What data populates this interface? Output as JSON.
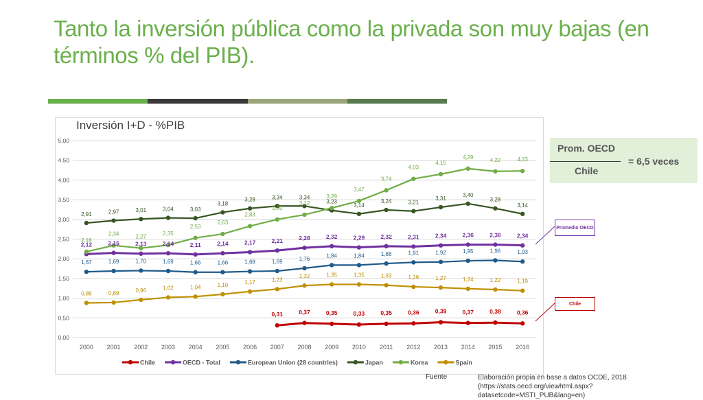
{
  "slide": {
    "title": "Tanto la inversión pública como la privada son muy bajas (en términos % del PIB).",
    "accent_colors": [
      "#6ab04c",
      "#3a3a3a",
      "#9aa57c",
      "#587a4d"
    ],
    "ratio": {
      "numerator": "Prom. OECD",
      "denominator": "Chile",
      "equals": "= 6,5 veces"
    },
    "callouts": {
      "oecd": "Promedio OECD",
      "chile": "Chile"
    },
    "source": {
      "label": "Fuente",
      "text": "Elaboración propia en base a datos OCDE, 2018 (https://stats.oecd.org/viewhtml.aspx?datasetcode=MSTI_PUB&lang=en)"
    }
  },
  "chart_data": {
    "type": "line",
    "title": "Inversión I+D - %PIB",
    "xlabel": "",
    "ylabel": "",
    "ylim": [
      0,
      5
    ],
    "yticks": [
      "0,00",
      "0,50",
      "1,00",
      "1,50",
      "2,00",
      "2,50",
      "3,00",
      "3,50",
      "4,00",
      "4,50",
      "5,00"
    ],
    "grid": true,
    "legend_position": "bottom",
    "categories": [
      "2000",
      "2001",
      "2002",
      "2003",
      "2004",
      "2005",
      "2006",
      "2007",
      "2008",
      "2009",
      "2010",
      "2011",
      "2012",
      "2013",
      "2014",
      "2015",
      "2016"
    ],
    "series": [
      {
        "name": "Chile",
        "color": "#c00000",
        "values": [
          null,
          null,
          null,
          null,
          null,
          null,
          null,
          0.31,
          0.37,
          0.35,
          0.33,
          0.35,
          0.36,
          0.39,
          0.37,
          0.38,
          0.36
        ],
        "labels": [
          null,
          null,
          null,
          null,
          null,
          null,
          null,
          "0,31",
          "0,37",
          "0,35",
          "0,33",
          "0,35",
          "0,36",
          "0,39",
          "0,37",
          "0,38",
          "0,36"
        ]
      },
      {
        "name": "OECD - Total",
        "color": "#7030a0",
        "values": [
          2.12,
          2.15,
          2.13,
          2.14,
          2.11,
          2.14,
          2.17,
          2.21,
          2.28,
          2.32,
          2.29,
          2.32,
          2.31,
          2.34,
          2.36,
          2.36,
          2.34
        ],
        "labels": [
          "2,12",
          "2,15",
          "2,13",
          "2,14",
          "2,11",
          "2,14",
          "2,17",
          "2,21",
          "2,28",
          "2,32",
          "2,29",
          "2,32",
          "2,31",
          "2,34",
          "2,36",
          "2,36",
          "2,34"
        ]
      },
      {
        "name": "European Union (28 countries)",
        "color": "#1f5a8a",
        "values": [
          1.67,
          1.69,
          1.7,
          1.69,
          1.66,
          1.66,
          1.68,
          1.69,
          1.76,
          1.84,
          1.84,
          1.88,
          1.91,
          1.92,
          1.95,
          1.96,
          1.93
        ],
        "labels": [
          "1,67",
          "1,69",
          "1,70",
          "1,69",
          "1,66",
          "1,66",
          "1,68",
          "1,69",
          "1,76",
          "1,84",
          "1,84",
          "1,88",
          "1,91",
          "1,92",
          "1,95",
          "1,96",
          "1,93"
        ]
      },
      {
        "name": "Japan",
        "color": "#375623",
        "values": [
          2.91,
          2.97,
          3.01,
          3.04,
          3.03,
          3.18,
          3.28,
          3.34,
          3.34,
          3.23,
          3.14,
          3.24,
          3.21,
          3.31,
          3.4,
          3.28,
          3.14
        ],
        "labels": [
          "2,91",
          "2,97",
          "3,01",
          "3,04",
          "3,03",
          "3,18",
          "3,28",
          "3,34",
          "3,34",
          "3,23",
          "3,14",
          "3,24",
          "3,21",
          "3,31",
          "3,40",
          "3,28",
          "3,14"
        ]
      },
      {
        "name": "Korea",
        "color": "#70ad47",
        "values": [
          2.18,
          2.34,
          2.27,
          2.35,
          2.53,
          2.63,
          2.83,
          3.0,
          3.12,
          3.29,
          3.47,
          3.74,
          4.03,
          4.15,
          4.29,
          4.22,
          4.23
        ],
        "labels": [
          "2,18",
          "2,34",
          "2,27",
          "2,35",
          "2,53",
          "2,63",
          "2,83",
          "3,00",
          "3,12",
          "3,29",
          "3,47",
          "3,74",
          "4,03",
          "4,15",
          "4,29",
          "4,22",
          "4,23"
        ]
      },
      {
        "name": "Spain",
        "color": "#bf9000",
        "values": [
          0.88,
          0.89,
          0.96,
          1.02,
          1.04,
          1.1,
          1.17,
          1.23,
          1.32,
          1.35,
          1.35,
          1.33,
          1.29,
          1.27,
          1.24,
          1.22,
          1.19
        ],
        "labels": [
          "0,88",
          "0,89",
          "0,96",
          "1,02",
          "1,04",
          "1,10",
          "1,17",
          "1,23",
          "1,32",
          "1,35",
          "1,35",
          "1,33",
          "1,29",
          "1,27",
          "1,24",
          "1,22",
          "1,19"
        ]
      }
    ]
  }
}
